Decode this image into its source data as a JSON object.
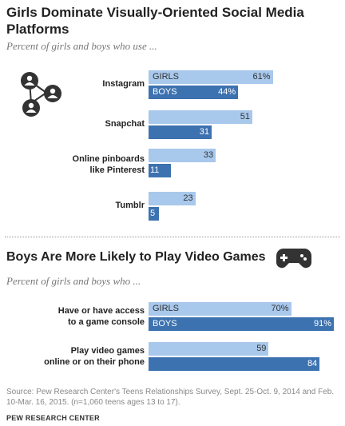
{
  "title": "Girls Dominate Visually-Oriented Social Media Platforms",
  "subtitle": "Percent of girls and boys who use ...",
  "title2": "Boys Are More Likely to Play Video Games",
  "subtitle2": "Percent of girls and boys who ...",
  "source": "Source: Pew Research Center's Teens Relationships Survey, Sept. 25-Oct. 9, 2014 and Feb. 10-Mar. 16, 2015. (n=1,060 teens ages 13 to 17).",
  "brand": "PEW RESEARCH CENTER",
  "colors": {
    "girls": "#a8c8ec",
    "boys": "#3d72b0"
  },
  "icons": {
    "top": "social-network-icon",
    "bottom": "game-controller-icon"
  },
  "chart_data": [
    {
      "type": "bar",
      "title": "Girls Dominate Visually-Oriented Social Media Platforms",
      "subtitle": "Percent of girls and boys who use ...",
      "categories": [
        "Instagram",
        "Snapchat",
        "Online pinboards like Pinterest",
        "Tumblr"
      ],
      "series": [
        {
          "name": "GIRLS",
          "values": [
            61,
            51,
            33,
            23
          ]
        },
        {
          "name": "BOYS",
          "values": [
            44,
            31,
            11,
            5
          ]
        }
      ],
      "value_suffix": [
        "%",
        "",
        "",
        ""
      ],
      "orientation": "horizontal"
    },
    {
      "type": "bar",
      "title": "Boys Are More Likely to Play Video Games",
      "subtitle": "Percent of girls and boys who ...",
      "categories": [
        "Have or have access to a game console",
        "Play video games online or on their phone"
      ],
      "series": [
        {
          "name": "GIRLS",
          "values": [
            70,
            59
          ]
        },
        {
          "name": "BOYS",
          "values": [
            91,
            84
          ]
        }
      ],
      "value_suffix": [
        "%",
        ""
      ],
      "orientation": "horizontal"
    }
  ]
}
